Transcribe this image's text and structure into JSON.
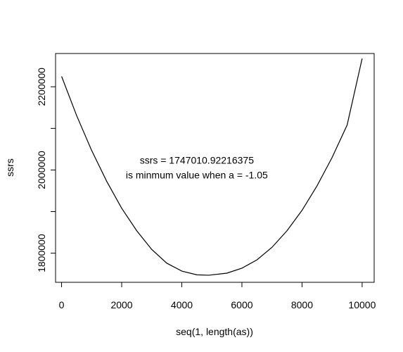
{
  "chart_data": {
    "type": "line",
    "title": "",
    "xlabel": "seq(1, length(as))",
    "ylabel": "ssrs",
    "xlim": [
      -200,
      10400
    ],
    "ylim": [
      1730000,
      2280000
    ],
    "x_ticks": [
      0,
      2000,
      4000,
      6000,
      8000,
      10000
    ],
    "x_tick_labels": [
      "0",
      "2000",
      "4000",
      "6000",
      "8000",
      "10000"
    ],
    "y_ticks": [
      1800000,
      2000000,
      2200000
    ],
    "y_tick_labels": [
      "1800000",
      "2000000",
      "2200000"
    ],
    "y_minor_ticks": [
      1900000,
      2100000
    ],
    "series": [
      {
        "values_note": "",
        "x": [
          1,
          500,
          1000,
          1500,
          2000,
          2500,
          3000,
          3500,
          4000,
          4500,
          4900,
          5500,
          6000,
          6500,
          7000,
          7500,
          8000,
          8500,
          9000,
          9500,
          10000
        ],
        "y": [
          2225000,
          2131000,
          2047000,
          1973000,
          1908000,
          1854000,
          1809000,
          1776000,
          1757000,
          1748000,
          1747000,
          1752000,
          1764000,
          1784000,
          1814000,
          1854000,
          1903000,
          1962000,
          2030000,
          2108000,
          2268000
        ]
      }
    ],
    "annotations": [
      {
        "text": "ssrs =  1747010.92216375",
        "x": 4500,
        "y": 2015000
      },
      {
        "text": "is minmum value when a =  -1.05",
        "x": 4500,
        "y": 1980000
      }
    ],
    "grid": false,
    "legend": "none"
  }
}
